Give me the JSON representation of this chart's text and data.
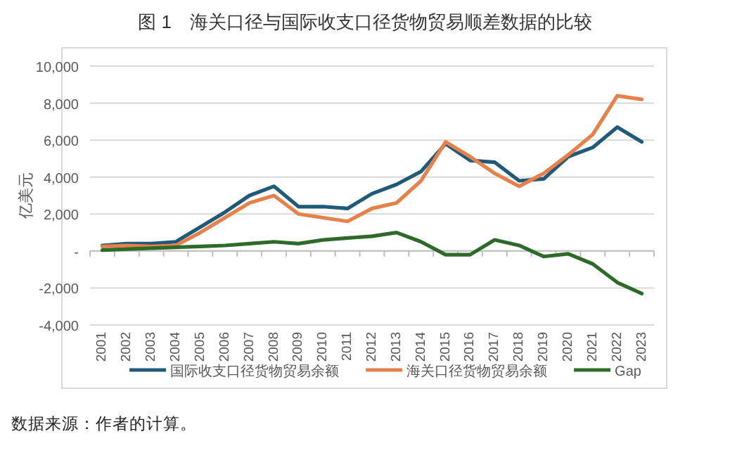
{
  "chart_data": {
    "type": "line",
    "title": "图 1　海关口径与国际收支口径货物贸易顺差数据的比较",
    "ylabel": "亿美元",
    "categories": [
      "2001",
      "2002",
      "2003",
      "2004",
      "2005",
      "2006",
      "2007",
      "2008",
      "2009",
      "2010",
      "2011",
      "2012",
      "2013",
      "2014",
      "2015",
      "2016",
      "2017",
      "2018",
      "2019",
      "2020",
      "2021",
      "2022",
      "2023"
    ],
    "series": [
      {
        "name": "国际收支口径货物贸易余额",
        "color": "#1f5a7a",
        "values": [
          300,
          400,
          400,
          500,
          1300,
          2100,
          3000,
          3500,
          2400,
          2400,
          2300,
          3100,
          3600,
          4300,
          5800,
          4900,
          4800,
          3800,
          3900,
          5100,
          5600,
          6700,
          5900
        ]
      },
      {
        "name": "海关口径货物贸易余额",
        "color": "#e8804a",
        "values": [
          250,
          300,
          250,
          300,
          1000,
          1800,
          2600,
          3000,
          2000,
          1800,
          1600,
          2300,
          2600,
          3800,
          5900,
          5100,
          4200,
          3500,
          4200,
          5200,
          6300,
          8400,
          8200
        ]
      },
      {
        "name": "Gap",
        "color": "#2e6b2a",
        "values": [
          50,
          100,
          150,
          200,
          250,
          300,
          400,
          500,
          400,
          600,
          700,
          800,
          1000,
          500,
          -200,
          -200,
          600,
          300,
          -300,
          -150,
          -700,
          -1700,
          -2300
        ]
      }
    ],
    "ylim": [
      -4000,
      10000
    ],
    "yticks": [
      {
        "value": -4000,
        "label": "-4,000"
      },
      {
        "value": -2000,
        "label": "-2,000"
      },
      {
        "value": 0,
        "label": "-"
      },
      {
        "value": 2000,
        "label": "2,000"
      },
      {
        "value": 4000,
        "label": "4,000"
      },
      {
        "value": 6000,
        "label": "6,000"
      },
      {
        "value": 8000,
        "label": "8,000"
      },
      {
        "value": 10000,
        "label": "10,000"
      }
    ],
    "grid": "y",
    "legend": "bottom",
    "annotations": [
      "数据来源：作者的计算。"
    ]
  }
}
